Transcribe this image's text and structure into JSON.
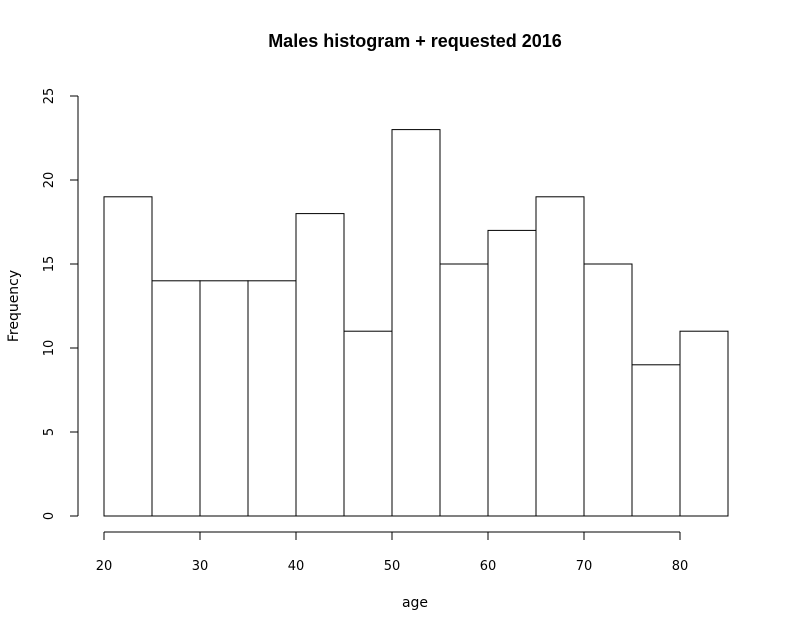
{
  "chart_data": {
    "type": "bar",
    "title": "Males histogram + requested 2016",
    "xlabel": "age",
    "ylabel": "Frequency",
    "bins": [
      {
        "from": 20,
        "to": 25,
        "count": 19
      },
      {
        "from": 25,
        "to": 30,
        "count": 14
      },
      {
        "from": 30,
        "to": 35,
        "count": 14
      },
      {
        "from": 35,
        "to": 40,
        "count": 14
      },
      {
        "from": 40,
        "to": 45,
        "count": 18
      },
      {
        "from": 45,
        "to": 50,
        "count": 11
      },
      {
        "from": 50,
        "to": 55,
        "count": 23
      },
      {
        "from": 55,
        "to": 60,
        "count": 15
      },
      {
        "from": 60,
        "to": 65,
        "count": 17
      },
      {
        "from": 65,
        "to": 70,
        "count": 19
      },
      {
        "from": 70,
        "to": 75,
        "count": 15
      },
      {
        "from": 75,
        "to": 80,
        "count": 9
      },
      {
        "from": 80,
        "to": 85,
        "count": 11
      }
    ],
    "xlim": [
      20,
      85
    ],
    "ylim": [
      0,
      25
    ],
    "x_ticks": [
      20,
      30,
      40,
      50,
      60,
      70,
      80
    ],
    "y_ticks": [
      0,
      5,
      10,
      15,
      20,
      25
    ],
    "grid": false,
    "legend": "none"
  }
}
